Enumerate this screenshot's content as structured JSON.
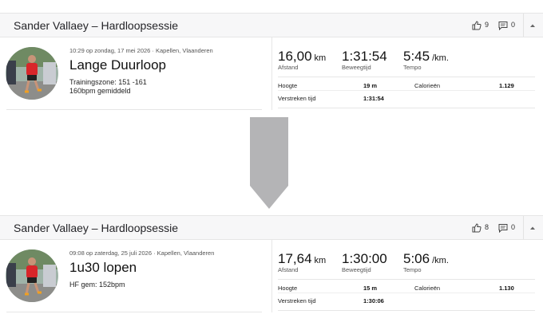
{
  "activities": [
    {
      "athlete": "Sander Vallaey – Hardloopsessie",
      "kudos": "9",
      "comments": "0",
      "datetime": "10:29 op zondag, 17 mei 2026 · Kapellen, Vlaanderen",
      "name": "Lange Duurloop",
      "description": [
        "Trainingszone: 151 -161",
        "160bpm gemiddeld"
      ],
      "stats": [
        {
          "value": "16,00",
          "unit": "km",
          "label": "Afstand"
        },
        {
          "value": "1:31:54",
          "label": "Beweegtijd"
        },
        {
          "value": "5:45",
          "unit": "/km.",
          "label": "Tempo"
        }
      ],
      "details": [
        {
          "label": "Hoogte",
          "value": "19 m"
        },
        {
          "label": "Calorieën",
          "value": "1.129"
        },
        {
          "label": "Verstreken tijd",
          "value": "1:31:54"
        }
      ]
    },
    {
      "athlete": "Sander Vallaey – Hardloopsessie",
      "kudos": "8",
      "comments": "0",
      "datetime": "09:08 op zaterdag, 25 juli 2026 · Kapellen, Vlaanderen",
      "name": "1u30 lopen",
      "description": [
        "HF gem: 152bpm"
      ],
      "stats": [
        {
          "value": "17,64",
          "unit": "km",
          "label": "Afstand"
        },
        {
          "value": "1:30:00",
          "label": "Beweegtijd"
        },
        {
          "value": "5:06",
          "unit": "/km.",
          "label": "Tempo"
        }
      ],
      "details": [
        {
          "label": "Hoogte",
          "value": "15 m"
        },
        {
          "label": "Calorieën",
          "value": "1.130"
        },
        {
          "label": "Verstreken tijd",
          "value": "1:30:06"
        }
      ]
    }
  ]
}
